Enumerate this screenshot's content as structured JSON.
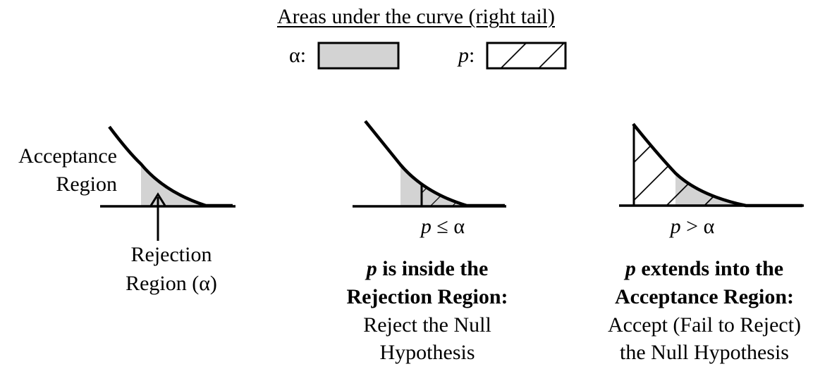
{
  "title": "Areas under the curve (right tail)",
  "legend": {
    "alpha_label": "α:",
    "p_label": "p",
    "p_colon": ":"
  },
  "colors": {
    "alpha_fill": "#d3d3d3",
    "line": "#000000"
  },
  "panel1": {
    "acceptance_line1": "Acceptance",
    "acceptance_line2": "Region",
    "rejection_line1": "Rejection",
    "rejection_line2": "Region (α)"
  },
  "panel2": {
    "condition_p": "p",
    "condition_rest": " ≤ α",
    "caption_p": "p",
    "caption_line1_rest": " is inside the",
    "caption_line2": "Rejection Region:",
    "caption_line3": "Reject the Null",
    "caption_line4": "Hypothesis"
  },
  "panel3": {
    "condition_p": "p",
    "condition_rest": " > α",
    "caption_p": "p",
    "caption_line1_rest": " extends into the",
    "caption_line2": "Acceptance Region:",
    "caption_line3": "Accept (Fail to Reject)",
    "caption_line4": "the Null Hypothesis"
  }
}
